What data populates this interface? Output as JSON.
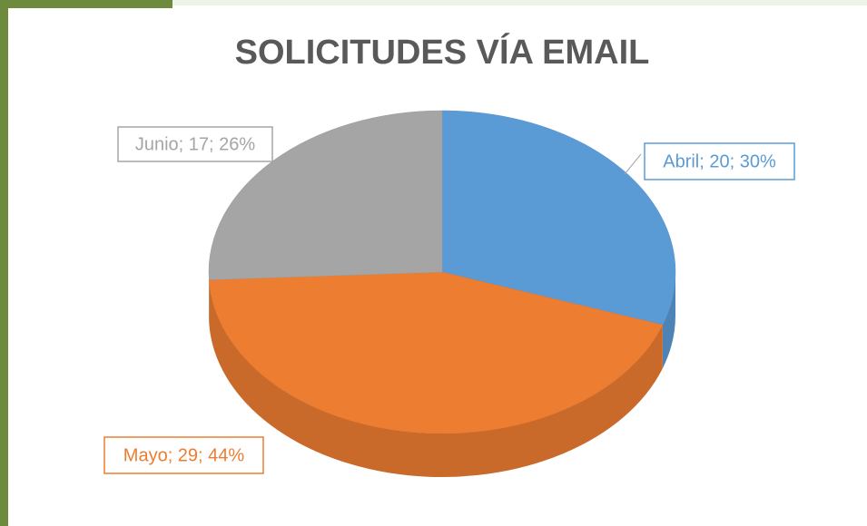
{
  "chart_data": {
    "type": "pie3d",
    "title": "SOLICITUDES VÍA EMAIL",
    "categories": [
      "Abril",
      "Mayo",
      "Junio"
    ],
    "values": [
      20,
      29,
      17
    ],
    "value_labels": [
      "Abril; 20; 30%",
      "Mayo; 29; 44%",
      "Junio; 17; 26%"
    ],
    "colors": [
      "#5b9bd5",
      "#ed7d31",
      "#a5a5a5"
    ]
  }
}
